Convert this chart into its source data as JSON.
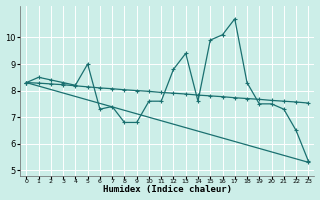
{
  "xlabel": "Humidex (Indice chaleur)",
  "ylabel": "",
  "bg_color": "#cceee8",
  "line_color": "#1a7070",
  "grid_color": "#ffffff",
  "xlim": [
    -0.5,
    23.5
  ],
  "ylim": [
    4.8,
    11.2
  ],
  "yticks": [
    5,
    6,
    7,
    8,
    9,
    10
  ],
  "xticks": [
    0,
    1,
    2,
    3,
    4,
    5,
    6,
    7,
    8,
    9,
    10,
    11,
    12,
    13,
    14,
    15,
    16,
    17,
    18,
    19,
    20,
    21,
    22,
    23
  ],
  "line1_x": [
    0,
    1,
    2,
    3,
    4,
    5,
    6,
    7,
    8,
    9,
    10,
    11,
    12,
    13,
    14,
    15,
    16,
    17,
    18,
    19,
    20,
    21,
    22,
    23
  ],
  "line1_y": [
    8.3,
    8.5,
    8.4,
    8.3,
    8.2,
    9.0,
    7.3,
    7.4,
    6.8,
    6.8,
    7.6,
    7.6,
    8.8,
    9.4,
    7.6,
    9.9,
    10.1,
    10.7,
    8.3,
    7.5,
    7.5,
    7.3,
    6.5,
    5.35
  ],
  "line2_x": [
    0,
    1,
    2,
    3,
    4,
    5,
    6,
    7,
    8,
    9,
    10,
    11,
    12,
    13,
    14,
    15,
    16,
    17,
    18,
    19,
    20,
    21,
    22,
    23
  ],
  "line2_y": [
    8.3,
    8.28,
    8.25,
    8.22,
    8.18,
    8.14,
    8.1,
    8.07,
    8.03,
    8.0,
    7.97,
    7.93,
    7.9,
    7.87,
    7.83,
    7.8,
    7.77,
    7.73,
    7.7,
    7.67,
    7.63,
    7.6,
    7.57,
    7.53
  ],
  "line3_x": [
    0,
    23
  ],
  "line3_y": [
    8.3,
    5.3
  ],
  "marker": "+"
}
